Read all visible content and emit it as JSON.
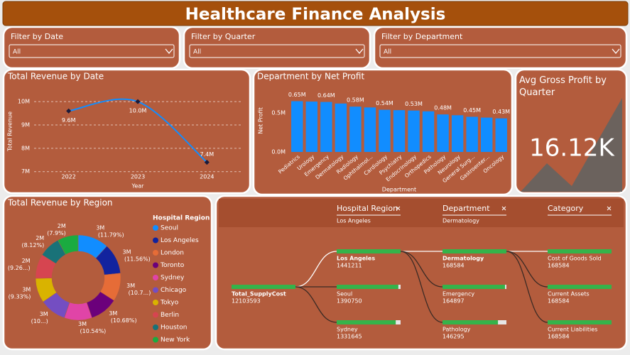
{
  "header": {
    "title": "Healthcare Finance Analysis"
  },
  "filters": [
    {
      "label": "Filter by Date",
      "value": "All"
    },
    {
      "label": "Filter by Quarter",
      "value": "All"
    },
    {
      "label": "Filter by Department",
      "value": "All"
    }
  ],
  "chart_data": [
    {
      "type": "line",
      "title": "Total Revenue by Date",
      "x_label": "Year",
      "y_label": "Total Revenue",
      "categories": [
        "2022",
        "2023",
        "2024"
      ],
      "values": [
        9600000,
        10000000,
        7400000
      ],
      "value_labels": [
        "9.6M",
        "10.0M",
        "7.4M"
      ],
      "color": "#118dff",
      "ylim": [
        6900000,
        10400000
      ],
      "yticks": [
        {
          "value": 7000000,
          "label": "7M"
        },
        {
          "value": 8000000,
          "label": "8M"
        },
        {
          "value": 9000000,
          "label": "9M"
        },
        {
          "value": 10000000,
          "label": "10M"
        }
      ],
      "grid": true
    },
    {
      "type": "bar",
      "title": "Department by Net Profit",
      "x_label": "Department",
      "y_label": "Net Profit",
      "categories": [
        "Pediatrics",
        "Urology",
        "Emergency",
        "Dermatology",
        "Radiology",
        "Ophthalmol...",
        "Cardiology",
        "Psychiatry",
        "Endocrinology",
        "Orthopedics",
        "Pathology",
        "Neurology",
        "General Surg...",
        "Gastroenter...",
        "Oncology"
      ],
      "values": [
        650000,
        645000,
        640000,
        620000,
        580000,
        570000,
        540000,
        535000,
        530000,
        520000,
        480000,
        470000,
        450000,
        440000,
        430000
      ],
      "value_labels": [
        "0.65M",
        null,
        "0.64M",
        null,
        "0.58M",
        null,
        "0.54M",
        null,
        "0.53M",
        null,
        "0.48M",
        null,
        "0.45M",
        null,
        "0.43M"
      ],
      "color": "#118dff",
      "ylim": [
        0,
        750000
      ],
      "yticks": [
        {
          "value": 0,
          "label": "0.0M"
        },
        {
          "value": 500000,
          "label": "0.5M"
        }
      ],
      "grid": false
    },
    {
      "type": "donut",
      "title": "Total Revenue by Region",
      "legend_title": "Hospital Region",
      "categories": [
        "Seoul",
        "Los Angeles",
        "London",
        "Toronto",
        "Sydney",
        "Chicago",
        "Tokyo",
        "Berlin",
        "Houston",
        "New York"
      ],
      "values": [
        11.79,
        11.56,
        10.7,
        10.68,
        10.54,
        10.12,
        9.33,
        9.26,
        8.12,
        7.9
      ],
      "value_labels": [
        "3M (11.79%)",
        "3M (11.56%)",
        "3M (10.7...)",
        "3M (10.68%)",
        "3M (10.54%)",
        "3M (10...)",
        "3M (9.33%)",
        "2M (9.26...)",
        "2M (8.12%)",
        "2M (7.9%)"
      ],
      "colors": [
        "#118dff",
        "#12239e",
        "#e66c37",
        "#6b007b",
        "#e044a7",
        "#744ec2",
        "#d9b300",
        "#d64550",
        "#197278",
        "#1aab40"
      ]
    }
  ],
  "kpi": {
    "title": "Avg Gross Profit by Quarter",
    "value": "16.12K"
  },
  "decomposition": {
    "columns": [
      {
        "title": "Hospital Region",
        "selected": "Los Angeles"
      },
      {
        "title": "Department",
        "selected": "Dermatology"
      },
      {
        "title": "Category"
      }
    ],
    "root": {
      "label": "Total_SupplyCost",
      "value": 12103593
    },
    "levels": [
      [
        {
          "label": "Los Angeles",
          "value": 1441211
        },
        {
          "label": "Seoul",
          "value": 1390750
        },
        {
          "label": "Sydney",
          "value": 1331645
        }
      ],
      [
        {
          "label": "Dermatology",
          "value": 168584
        },
        {
          "label": "Emergency",
          "value": 164897
        },
        {
          "label": "Pathology",
          "value": 146295
        }
      ],
      [
        {
          "label": "Cost of Goods Sold",
          "value": 168584
        },
        {
          "label": "Current Assets",
          "value": 168584
        },
        {
          "label": "Current Liabilities",
          "value": 168584
        }
      ]
    ]
  }
}
